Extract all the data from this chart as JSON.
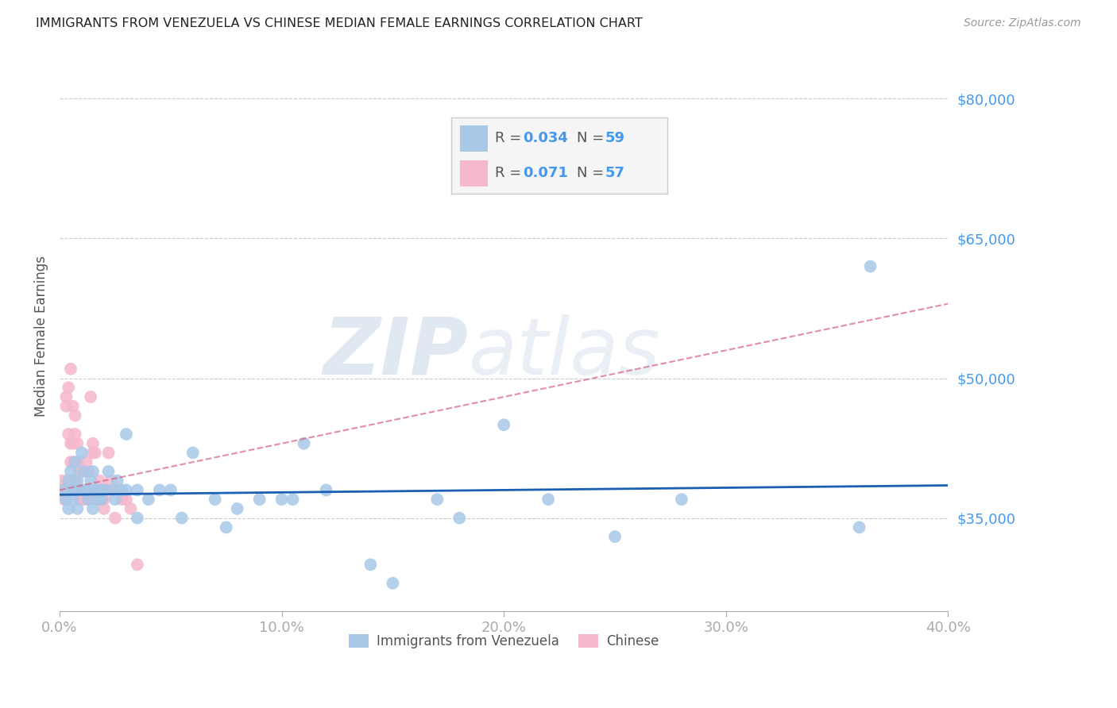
{
  "title": "IMMIGRANTS FROM VENEZUELA VS CHINESE MEDIAN FEMALE EARNINGS CORRELATION CHART",
  "source": "Source: ZipAtlas.com",
  "xlabel_ticks": [
    "0.0%",
    "10.0%",
    "20.0%",
    "30.0%",
    "40.0%"
  ],
  "xlabel_vals": [
    0.0,
    10.0,
    20.0,
    30.0,
    40.0
  ],
  "ylabel_ticks": [
    "$35,000",
    "$50,000",
    "$65,000",
    "$80,000"
  ],
  "ylabel_vals": [
    35000,
    50000,
    65000,
    80000
  ],
  "ylabel_label": "Median Female Earnings",
  "xmin": 0.0,
  "xmax": 40.0,
  "ymin": 25000,
  "ymax": 84000,
  "blue_R": "0.034",
  "blue_N": "59",
  "pink_R": "0.071",
  "pink_N": "57",
  "blue_label": "Immigrants from Venezuela",
  "pink_label": "Chinese",
  "blue_color": "#a8c8e8",
  "pink_color": "#f5b8cc",
  "blue_edge_color": "#85afd4",
  "pink_edge_color": "#e898b4",
  "blue_line_color": "#1a5fb4",
  "pink_line_color": "#d46080",
  "blue_scatter_x": [
    0.2,
    0.3,
    0.4,
    0.5,
    0.6,
    0.7,
    0.8,
    0.9,
    1.0,
    1.1,
    1.2,
    1.3,
    1.4,
    1.5,
    1.6,
    1.7,
    1.8,
    1.9,
    2.0,
    2.2,
    2.4,
    2.6,
    2.8,
    3.0,
    3.5,
    4.0,
    5.0,
    6.0,
    7.0,
    8.0,
    9.0,
    10.0,
    11.0,
    12.0,
    14.0,
    15.0,
    17.0,
    18.0,
    20.0,
    22.0,
    25.0,
    28.0,
    36.0,
    0.4,
    0.5,
    0.6,
    0.8,
    1.0,
    1.2,
    1.5,
    2.0,
    2.5,
    3.0,
    3.5,
    4.5,
    5.5,
    7.5,
    10.5,
    36.5
  ],
  "blue_scatter_y": [
    38000,
    37000,
    39000,
    40000,
    38000,
    41000,
    39000,
    38000,
    42000,
    40000,
    38000,
    37000,
    39000,
    40000,
    38000,
    37000,
    38000,
    37000,
    38000,
    40000,
    38000,
    39000,
    38000,
    44000,
    38000,
    37000,
    38000,
    42000,
    37000,
    36000,
    37000,
    37000,
    43000,
    38000,
    30000,
    28000,
    37000,
    35000,
    45000,
    37000,
    33000,
    37000,
    34000,
    36000,
    38000,
    37000,
    36000,
    38000,
    38000,
    36000,
    38000,
    37000,
    38000,
    35000,
    38000,
    35000,
    34000,
    37000,
    62000
  ],
  "pink_scatter_x": [
    0.1,
    0.2,
    0.3,
    0.4,
    0.5,
    0.5,
    0.6,
    0.6,
    0.7,
    0.7,
    0.8,
    0.8,
    0.9,
    0.9,
    1.0,
    1.0,
    1.1,
    1.1,
    1.2,
    1.2,
    1.3,
    1.3,
    1.4,
    1.5,
    1.5,
    1.6,
    1.6,
    1.7,
    1.8,
    1.9,
    2.0,
    2.0,
    2.1,
    2.2,
    2.3,
    2.4,
    2.5,
    2.6,
    2.8,
    3.0,
    3.2,
    0.3,
    0.4,
    0.5,
    0.6,
    0.7,
    0.8,
    0.3,
    0.2,
    0.1,
    1.5,
    1.2,
    0.9,
    0.6,
    2.0,
    1.8,
    3.5
  ],
  "pink_scatter_y": [
    38000,
    37000,
    48000,
    49000,
    51000,
    43000,
    47000,
    41000,
    44000,
    39000,
    43000,
    38000,
    40000,
    37000,
    40000,
    37000,
    38000,
    37000,
    41000,
    38000,
    40000,
    37000,
    48000,
    43000,
    38000,
    42000,
    37000,
    38000,
    39000,
    37000,
    38000,
    37000,
    38000,
    42000,
    39000,
    38000,
    35000,
    38000,
    37000,
    37000,
    36000,
    47000,
    44000,
    41000,
    43000,
    46000,
    41000,
    39000,
    38000,
    39000,
    42000,
    38000,
    38000,
    38000,
    36000,
    38000,
    30000
  ],
  "blue_trend_x": [
    0.0,
    40.0
  ],
  "blue_trend_y": [
    37500,
    38500
  ],
  "pink_trend_x": [
    0.0,
    40.0
  ],
  "pink_trend_y": [
    38000,
    58000
  ],
  "watermark_text": "ZIP",
  "watermark_text2": "atlas",
  "background_color": "#ffffff",
  "grid_color": "#cccccc"
}
